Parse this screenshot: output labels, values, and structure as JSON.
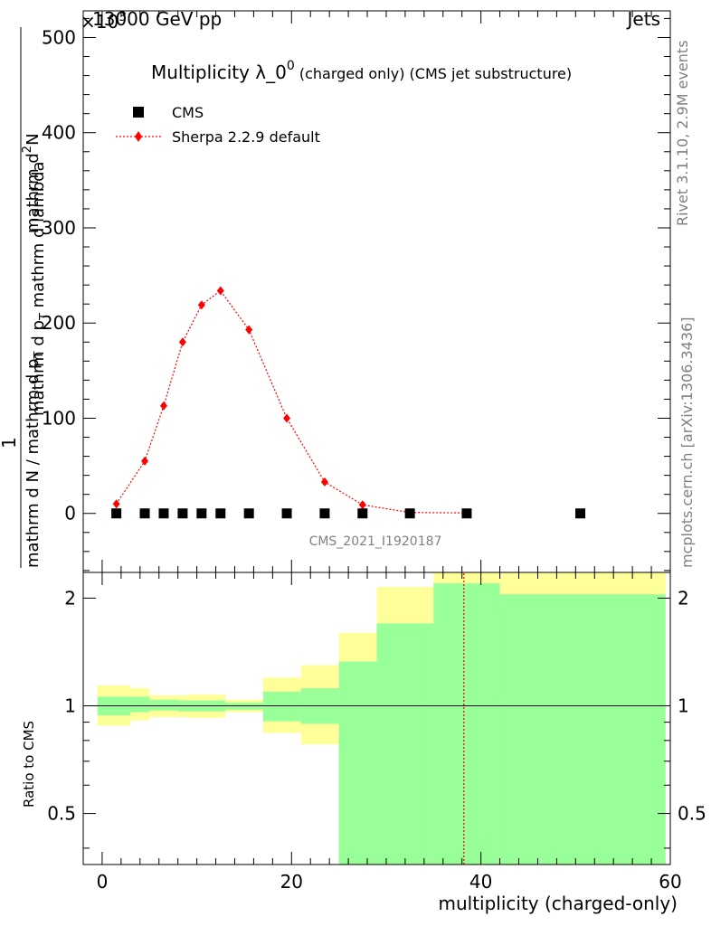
{
  "header": {
    "left": "13000 GeV pp",
    "right": "Jets",
    "multiplier": "×10",
    "multiplier_exp": "3"
  },
  "side_text": {
    "rivet": "Rivet 3.1.10,  2.9M events",
    "mcplots": "mcplots.cern.ch [arXiv:1306.3436]"
  },
  "watermark": "CMS_2021_I1920187",
  "colors": {
    "mc": "#ff0000",
    "band_inner": "#99ff99",
    "band_outer": "#ffff99",
    "data": "#000000"
  },
  "chart_data": [
    {
      "type": "scatter",
      "title": "Multiplicity λ_0^0 (charged only) (CMS jet substructure)",
      "title_main": "Multiplicity λ_0",
      "title_sup": "0",
      "title_rest": " (charged only) (CMS jet substructure)",
      "ylabel_frac_top": "1",
      "ylabel_line1": "mathrm d N / mathrm d p",
      "ylabel_line2": "mathrm d",
      "ylabel_line3": "N",
      "ylabel_line4": "mathrm d p",
      "ylabel_line5": "T",
      "ylabel_line6": "mathrm d lambda",
      "ylabel_numerator": "mathrm d",
      "ylabel_numerator_sup": "2",
      "ylabel_numerator_rest": "N",
      "ylabel_denominator_a": "mathrm d p",
      "ylabel_denominator_sub": "T",
      "ylabel_denominator_b": " mathrm d lambda",
      "ylabel_prefix": "mathrm d N / mathrm d p",
      "ylabel_prefix_sub": "T",
      "xlim": [
        -2,
        60
      ],
      "ylim": [
        -62,
        528
      ],
      "y_ticks": [
        0,
        100,
        200,
        300,
        400,
        500
      ],
      "legend": [
        "CMS",
        "Sherpa 2.2.9 default"
      ],
      "legend_position": "top-left",
      "series": [
        {
          "name": "CMS",
          "x": [
            1.5,
            4.5,
            6.5,
            8.5,
            10.5,
            12.5,
            15.5,
            19.5,
            23.5,
            27.5,
            32.5,
            38.5,
            50.5
          ],
          "values": [
            0,
            0,
            0,
            0,
            0,
            0,
            0,
            0,
            0,
            0,
            0,
            0,
            0
          ]
        },
        {
          "name": "Sherpa 2.2.9 default",
          "x": [
            1.5,
            4.5,
            6.5,
            8.5,
            10.5,
            12.5,
            15.5,
            19.5,
            23.5,
            27.5,
            32.5,
            38.5
          ],
          "values": [
            10,
            55,
            113,
            180,
            219,
            234,
            193,
            100,
            33,
            9,
            1,
            0.5
          ]
        }
      ]
    },
    {
      "type": "area",
      "ylabel": "Ratio to CMS",
      "xlabel": "multiplicity (charged-only)",
      "xlim": [
        -2,
        60
      ],
      "ylim": [
        0.36,
        2.36
      ],
      "scale": "log",
      "x_ticks": [
        0,
        20,
        40,
        60
      ],
      "y_ticks": [
        0.5,
        1,
        2
      ],
      "bins": [
        -0.5,
        3,
        5,
        8,
        9,
        13,
        17,
        21,
        25,
        29,
        35,
        42,
        59.5
      ],
      "inner_band_low": [
        0.94,
        0.96,
        0.97,
        0.965,
        0.965,
        0.975,
        0.905,
        0.89,
        0.36,
        0.36,
        0.36,
        0.36
      ],
      "inner_band_high": [
        1.06,
        1.06,
        1.04,
        1.035,
        1.035,
        1.02,
        1.095,
        1.12,
        1.33,
        1.7,
        2.2,
        2.05
      ],
      "outer_band_low": [
        0.88,
        0.91,
        0.93,
        0.93,
        0.925,
        0.96,
        0.84,
        0.78,
        0.48,
        0.36,
        0.36,
        0.36
      ],
      "outer_band_high": [
        1.14,
        1.12,
        1.07,
        1.07,
        1.075,
        1.04,
        1.2,
        1.3,
        1.6,
        2.15,
        2.36,
        2.36
      ],
      "mc_ratio_x": [
        38.2,
        38.2
      ],
      "mc_ratio_y": [
        0.36,
        2.36
      ]
    }
  ]
}
